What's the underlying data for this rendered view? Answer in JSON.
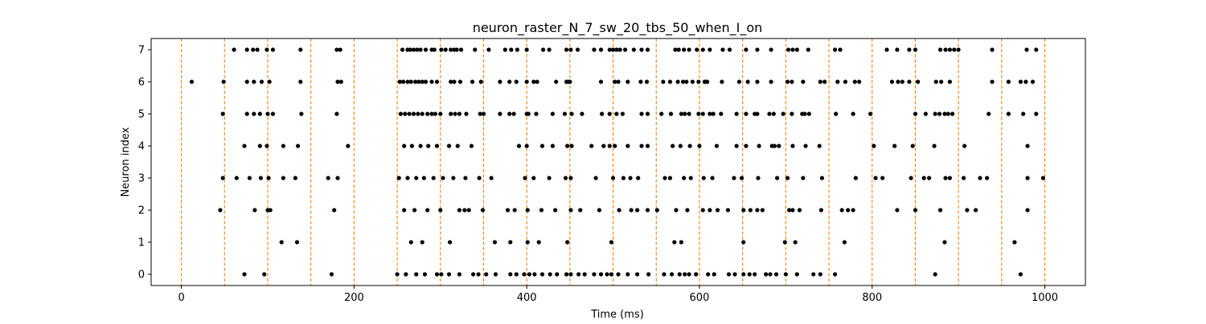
{
  "chart_data": {
    "type": "scatter",
    "title": "neuron_raster_N_7_sw_20_tbs_50_when_I_on",
    "xlabel": "Time (ms)",
    "ylabel": "Neuron index",
    "xlim": [
      -35,
      1047
    ],
    "ylim": [
      -0.35,
      7.35
    ],
    "xticks": [
      0,
      200,
      400,
      600,
      800,
      1000
    ],
    "yticks": [
      0,
      1,
      2,
      3,
      4,
      5,
      6,
      7
    ],
    "grid": false,
    "marker_color": "#000000",
    "vline_color": "#ff7f0e",
    "vlines_x": [
      0,
      50,
      100,
      150,
      200,
      250,
      300,
      350,
      400,
      450,
      500,
      550,
      600,
      650,
      700,
      750,
      800,
      850,
      900,
      950,
      1000
    ],
    "spikes": [
      {
        "neuron": 7,
        "times": [
          61,
          76,
          83,
          88,
          99,
          106,
          138,
          180,
          184,
          256,
          262,
          265,
          269,
          273,
          277,
          283,
          290,
          293,
          301,
          306,
          312,
          316,
          319,
          324,
          340,
          356,
          375,
          382,
          389,
          400,
          419,
          426,
          446,
          451,
          459,
          478,
          486,
          496,
          500,
          504,
          508,
          514,
          524,
          533,
          540,
          572,
          576,
          582,
          588,
          597,
          604,
          612,
          627,
          635,
          654,
          667,
          683,
          703,
          708,
          713,
          726,
          757,
          763,
          817,
          829,
          843,
          850,
          879,
          885,
          890,
          895,
          900,
          939,
          979,
          990
        ]
      },
      {
        "neuron": 6,
        "times": [
          12,
          49,
          76,
          84,
          93,
          102,
          138,
          181,
          185,
          253,
          257,
          262,
          266,
          271,
          275,
          279,
          283,
          290,
          296,
          312,
          316,
          323,
          337,
          347,
          369,
          380,
          388,
          400,
          408,
          412,
          434,
          446,
          448,
          450,
          486,
          502,
          506,
          517,
          532,
          539,
          558,
          566,
          575,
          581,
          585,
          592,
          599,
          606,
          608,
          609,
          626,
          646,
          656,
          667,
          683,
          702,
          707,
          720,
          740,
          745,
          760,
          769,
          780,
          785,
          823,
          830,
          835,
          843,
          853,
          874,
          880,
          890,
          939,
          958,
          972,
          978,
          986
        ]
      },
      {
        "neuron": 5,
        "times": [
          48,
          76,
          84,
          91,
          100,
          106,
          139,
          180,
          254,
          259,
          264,
          269,
          274,
          279,
          285,
          290,
          294,
          300,
          312,
          317,
          322,
          330,
          346,
          350,
          369,
          380,
          385,
          400,
          402,
          411,
          430,
          444,
          452,
          464,
          487,
          496,
          504,
          511,
          533,
          540,
          556,
          567,
          579,
          583,
          588,
          599,
          604,
          612,
          616,
          625,
          643,
          654,
          664,
          667,
          681,
          686,
          697,
          707,
          719,
          722,
          727,
          758,
          778,
          798,
          850,
          862,
          873,
          878,
          884,
          888,
          893,
          935,
          958,
          975,
          990
        ]
      },
      {
        "neuron": 4,
        "times": [
          73,
          91,
          99,
          118,
          135,
          193,
          258,
          267,
          277,
          286,
          296,
          310,
          320,
          336,
          391,
          400,
          418,
          430,
          447,
          452,
          475,
          489,
          496,
          502,
          517,
          533,
          540,
          569,
          578,
          589,
          600,
          620,
          643,
          654,
          669,
          684,
          687,
          692,
          708,
          723,
          739,
          802,
          826,
          847,
          872,
          907,
          980
        ]
      },
      {
        "neuron": 3,
        "times": [
          48,
          64,
          79,
          92,
          101,
          118,
          132,
          170,
          181,
          252,
          262,
          272,
          281,
          292,
          303,
          315,
          329,
          345,
          359,
          398,
          408,
          426,
          445,
          451,
          480,
          500,
          512,
          520,
          529,
          560,
          566,
          582,
          590,
          605,
          615,
          640,
          649,
          668,
          690,
          702,
          720,
          742,
          781,
          804,
          812,
          845,
          860,
          866,
          885,
          890,
          906,
          925,
          933,
          980,
          998
        ]
      },
      {
        "neuron": 2,
        "times": [
          45,
          85,
          100,
          103,
          177,
          258,
          270,
          285,
          300,
          322,
          328,
          333,
          349,
          378,
          386,
          401,
          417,
          433,
          451,
          462,
          484,
          507,
          521,
          528,
          540,
          551,
          573,
          586,
          604,
          612,
          621,
          633,
          651,
          659,
          667,
          673,
          704,
          708,
          716,
          741,
          765,
          772,
          778,
          829,
          850,
          879,
          910,
          920,
          980
        ]
      },
      {
        "neuron": 1,
        "times": [
          116,
          134,
          266,
          279,
          311,
          363,
          381,
          401,
          414,
          447,
          498,
          571,
          579,
          651,
          699,
          711,
          768,
          884,
          965
        ]
      },
      {
        "neuron": 0,
        "times": [
          73,
          96,
          174,
          250,
          260,
          272,
          282,
          296,
          301,
          310,
          322,
          338,
          344,
          353,
          364,
          381,
          388,
          397,
          403,
          409,
          418,
          427,
          435,
          446,
          451,
          460,
          467,
          478,
          486,
          493,
          498,
          506,
          517,
          528,
          541,
          559,
          568,
          577,
          583,
          588,
          596,
          610,
          617,
          634,
          641,
          651,
          658,
          664,
          677,
          682,
          689,
          700,
          713,
          732,
          740,
          757,
          873,
          972
        ]
      }
    ]
  }
}
